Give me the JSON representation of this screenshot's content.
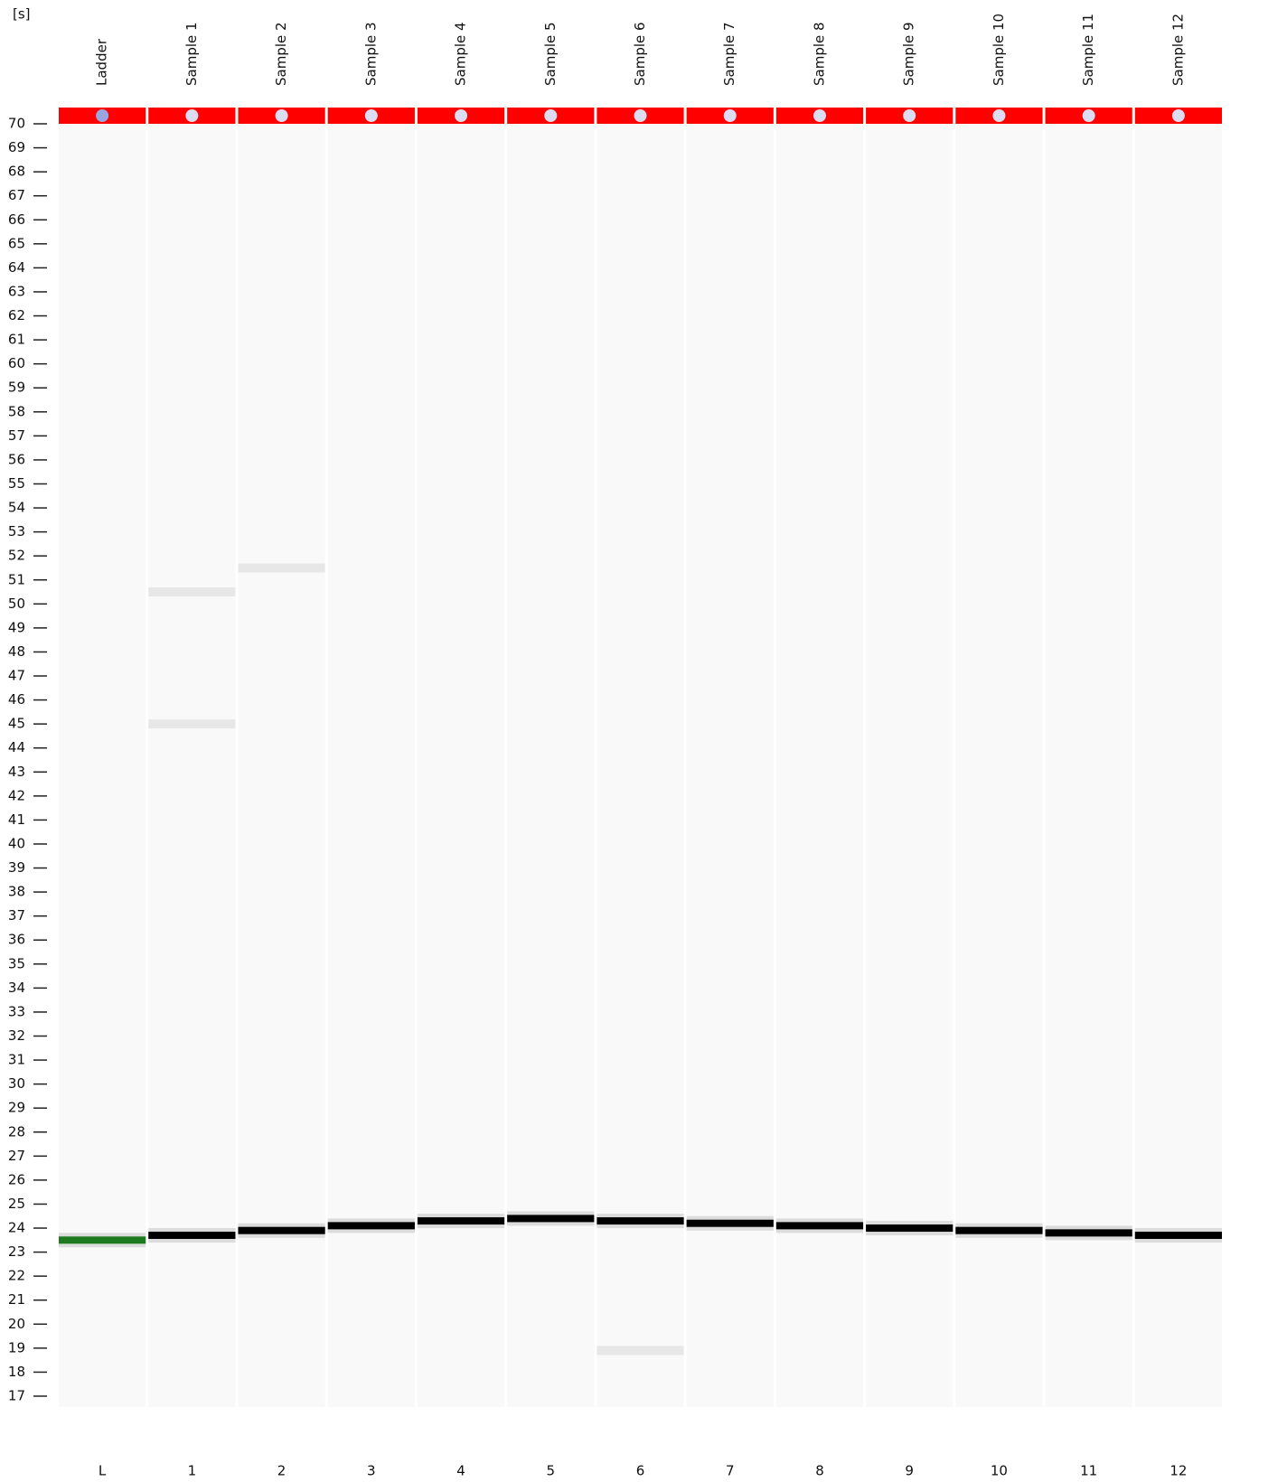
{
  "chart_data": {
    "type": "gel",
    "y_unit_label": "[s]",
    "categories": [
      "Ladder",
      "Sample 1",
      "Sample 2",
      "Sample 3",
      "Sample 4",
      "Sample 5",
      "Sample 6",
      "Sample 7",
      "Sample 8",
      "Sample 9",
      "Sample 10",
      "Sample 11",
      "Sample 12"
    ],
    "lane_labels": [
      "L",
      "1",
      "2",
      "3",
      "4",
      "5",
      "6",
      "7",
      "8",
      "9",
      "10",
      "11",
      "12"
    ],
    "values": [
      23.5,
      23.7,
      23.9,
      24.1,
      24.3,
      24.4,
      24.3,
      24.2,
      24.1,
      24.0,
      23.9,
      23.8,
      23.7
    ],
    "minor_values": [
      [],
      [
        50.5,
        45.0
      ],
      [
        51.5
      ],
      [],
      [],
      [],
      [
        18.9
      ],
      [],
      [],
      [],
      [],
      [],
      []
    ],
    "ladder_color": "#1e7a1e",
    "color": "#000000",
    "marker_bar_color": "#ff0000",
    "ylim": [
      17,
      70
    ],
    "yticks": [
      17,
      18,
      19,
      20,
      21,
      22,
      23,
      24,
      25,
      26,
      27,
      28,
      29,
      30,
      31,
      32,
      33,
      34,
      35,
      36,
      37,
      38,
      39,
      40,
      41,
      42,
      43,
      44,
      45,
      46,
      47,
      48,
      49,
      50,
      51,
      52,
      53,
      54,
      55,
      56,
      57,
      58,
      59,
      60,
      61,
      62,
      63,
      64,
      65,
      66,
      67,
      68,
      69,
      70
    ]
  }
}
